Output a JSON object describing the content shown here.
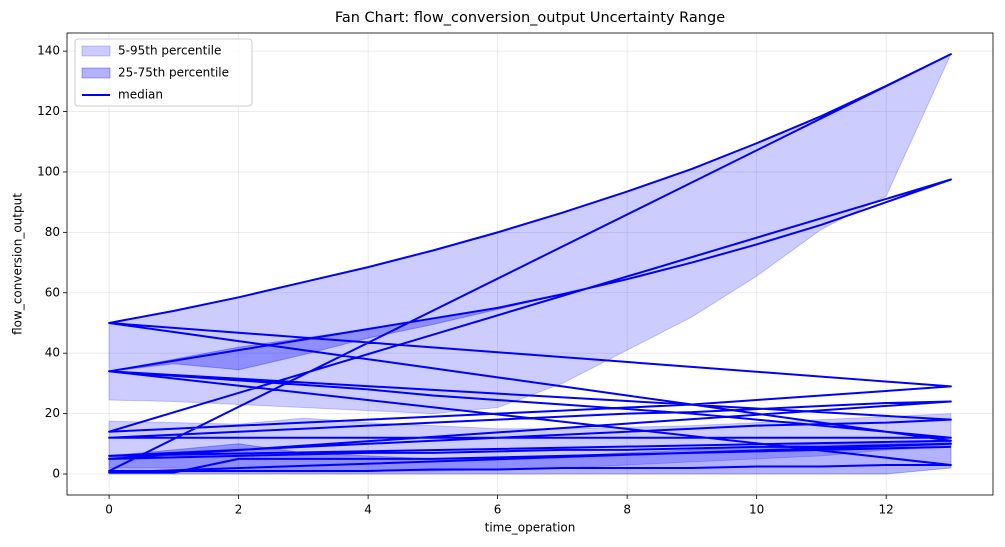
{
  "chart_data": {
    "type": "fan",
    "title": "Fan Chart: flow_conversion_output Uncertainty Range",
    "x_label": "time_operation",
    "y_label": "flow_conversion_output",
    "x": [
      0,
      1,
      2,
      3,
      4,
      5,
      6,
      7,
      8,
      9,
      10,
      11,
      12,
      13
    ],
    "xlim": [
      -0.65,
      13.65
    ],
    "ylim": [
      -6.95,
      146.0
    ],
    "xticks": [
      0,
      2,
      4,
      6,
      8,
      10,
      12
    ],
    "yticks": [
      0,
      20,
      40,
      60,
      80,
      100,
      120,
      140
    ],
    "grid": true,
    "legend": "upper left",
    "bands": [
      {
        "name": "5-95th percentile",
        "color": "#0000ff",
        "opacity": 0.2,
        "areas": [
          {
            "lower": [
              24.5,
              24,
              23,
              22,
              21,
              20,
              22,
              30,
              41,
              52,
              65.5,
              81,
              92,
              139
            ],
            "upper": [
              50,
              54,
              58.5,
              63.5,
              68.5,
              74,
              80,
              86.5,
              93.5,
              101,
              109.5,
              118.5,
              128.5,
              139
            ]
          },
          {
            "lower": [
              2,
              2,
              1,
              1,
              1,
              1,
              1.5,
              2,
              3,
              4,
              5,
              6,
              8,
              9
            ],
            "upper": [
              17.5,
              17,
              16.5,
              18.5,
              17,
              16,
              15,
              15,
              15.5,
              16,
              17,
              18,
              19,
              20
            ]
          }
        ]
      },
      {
        "name": "25-75th percentile",
        "color": "#0000ff",
        "opacity": 0.3,
        "areas": [
          {
            "lower": [
              34,
              36.5,
              34.5,
              39.5,
              45,
              49.5,
              54.5,
              59.5,
              64.5,
              70,
              76,
              82.5,
              90,
              97.5
            ],
            "upper": [
              34,
              38,
              42,
              45,
              48,
              51.5,
              55,
              59.5,
              64.5,
              70,
              76,
              82.5,
              90,
              97.5
            ]
          },
          {
            "lower": [
              0,
              0,
              0,
              0,
              0,
              0,
              0,
              0,
              0,
              0,
              0,
              0,
              0,
              2
            ],
            "upper": [
              6,
              8,
              10,
              7,
              6,
              5,
              5,
              6,
              7,
              8,
              9,
              10,
              10,
              11
            ]
          }
        ]
      }
    ],
    "median": {
      "name": "median",
      "color": "#0000ff",
      "groups": [
        [
          50,
          54,
          58.5,
          63.5,
          68.5,
          74,
          80,
          86.5,
          93.5,
          101,
          109.5,
          118.5,
          128.5,
          139
        ],
        [
          1,
          1,
          1,
          1,
          1,
          1.5,
          1.5,
          2,
          2,
          2,
          2.5,
          2.5,
          3,
          3
        ],
        [
          34,
          37.5,
          41,
          44.5,
          48,
          51.5,
          55,
          59.5,
          64.5,
          70,
          76,
          82.5,
          90,
          97.5
        ],
        [
          14,
          15,
          16,
          17,
          18,
          19,
          20,
          21,
          22,
          23,
          24.5,
          26,
          27.5,
          29
        ],
        [
          50,
          47,
          44,
          41,
          38,
          35,
          32,
          29,
          26,
          23,
          20,
          17,
          14,
          11
        ],
        [
          6,
          7,
          8,
          9,
          10,
          11,
          12,
          13,
          14,
          15,
          16,
          16.5,
          17,
          18
        ],
        [
          34,
          32.5,
          31,
          29.5,
          28,
          26,
          24.5,
          23,
          21.5,
          20,
          18,
          16,
          14,
          12
        ],
        [
          12,
          13,
          14,
          15,
          16,
          17,
          18,
          19,
          20,
          20.5,
          21.5,
          22.5,
          23.5,
          24
        ],
        [
          5,
          5.5,
          6,
          6.5,
          7,
          7,
          7.5,
          8,
          8,
          8.5,
          9,
          9,
          9.5,
          10
        ],
        [
          0.5,
          0.5,
          5,
          5,
          5,
          5,
          5.5,
          6,
          6.5,
          7,
          7.5,
          8,
          8.5,
          9
        ]
      ]
    }
  }
}
